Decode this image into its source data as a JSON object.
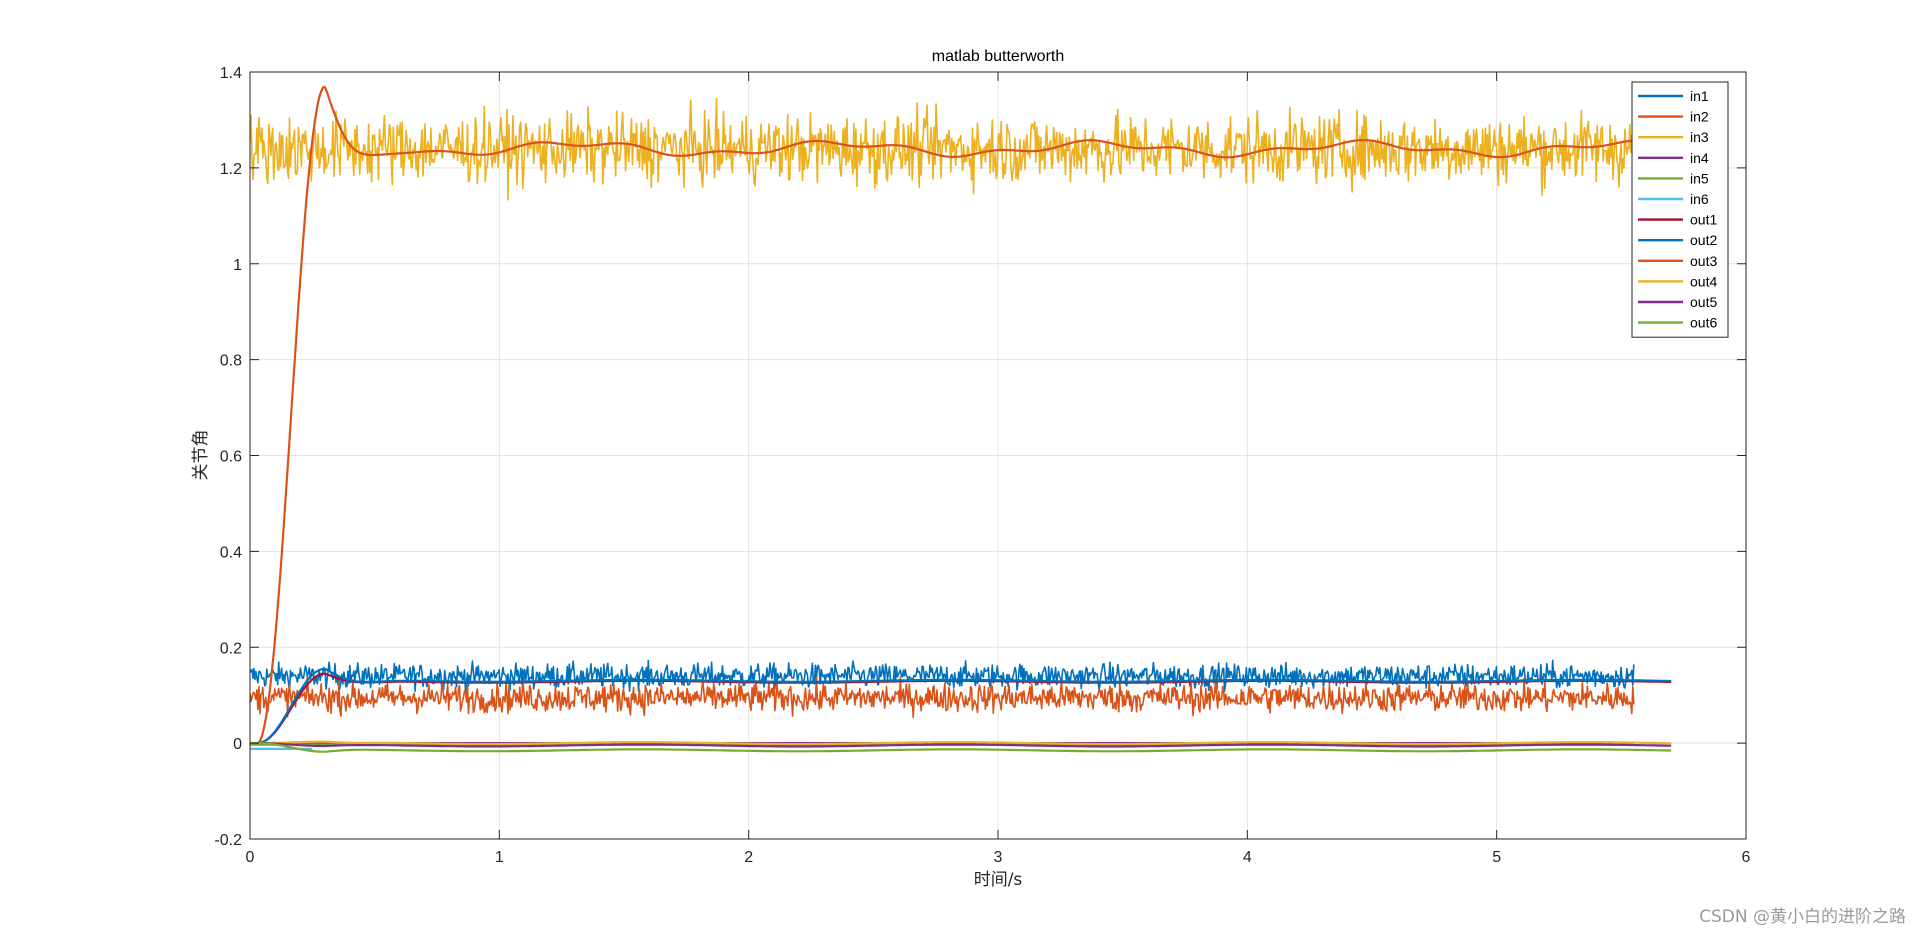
{
  "chart_data": {
    "type": "line",
    "title": "matlab butterworth",
    "xlabel": "时间/s",
    "ylabel": "关节角",
    "xlim": [
      0,
      6
    ],
    "ylim": [
      -0.2,
      1.4
    ],
    "xticks": [
      "0",
      "1",
      "2",
      "3",
      "4",
      "5",
      "6"
    ],
    "yticks": [
      "-0.2",
      "0",
      "0.2",
      "0.4",
      "0.6",
      "0.8",
      "1",
      "1.2",
      "1.4"
    ],
    "grid": true,
    "legend_position": "top-right",
    "series": [
      {
        "name": "in1",
        "color": "#0072BD",
        "kind": "noisy",
        "x_end": 5.55,
        "level": 0.14,
        "noise": 0.025
      },
      {
        "name": "in2",
        "color": "#D95319",
        "kind": "noisy",
        "x_end": 5.55,
        "level": 0.095,
        "noise": 0.03
      },
      {
        "name": "in3",
        "color": "#EDB120",
        "kind": "noisy",
        "x_end": 5.55,
        "level": 1.24,
        "noise": 0.07
      },
      {
        "name": "in4",
        "color": "#7E2F8E",
        "kind": "flat",
        "x_end": 5.55,
        "level": 0.0
      },
      {
        "name": "in5",
        "color": "#77AC30",
        "kind": "flat",
        "x_end": 5.55,
        "level": -0.003
      },
      {
        "name": "in6",
        "color": "#4DBEEE",
        "kind": "flat",
        "x_end": 0.25,
        "level": -0.012
      },
      {
        "name": "out1",
        "color": "#A2142F",
        "kind": "filtered",
        "x_end": 5.7,
        "level": 0.128,
        "peak": 0.145,
        "peak_x": 0.3
      },
      {
        "name": "out2",
        "color": "#0072BD",
        "kind": "filtered",
        "x_end": 5.7,
        "level": 0.13,
        "peak": 0.155,
        "peak_x": 0.3
      },
      {
        "name": "out3",
        "color": "#D95319",
        "kind": "filtered",
        "x_end": 5.7,
        "level": 1.24,
        "peak": 1.37,
        "peak_x": 0.3
      },
      {
        "name": "out4",
        "color": "#EDB120",
        "kind": "filtered",
        "x_end": 5.7,
        "level": 0.0,
        "peak": 0.003,
        "peak_x": 0.3
      },
      {
        "name": "out5",
        "color": "#7E2F8E",
        "kind": "filtered",
        "x_end": 5.7,
        "level": -0.005,
        "peak": -0.006,
        "peak_x": 0.3
      },
      {
        "name": "out6",
        "color": "#77AC30",
        "kind": "filtered",
        "x_end": 5.7,
        "level": -0.015,
        "peak": -0.018,
        "peak_x": 0.3
      }
    ]
  },
  "watermark": "CSDN @黄小白的进阶之路"
}
